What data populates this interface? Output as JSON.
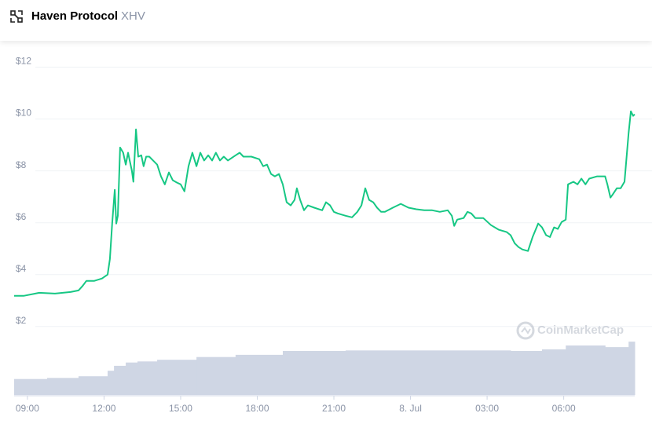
{
  "header": {
    "name": "Haven Protocol",
    "symbol": "XHV"
  },
  "chart_data": {
    "type": "line",
    "watermark": "CoinMarketCap",
    "x": [
      8.48,
      8.85,
      9.31,
      9.46,
      10.08,
      10.69,
      11.0,
      11.15,
      11.31,
      11.62,
      11.92,
      12.14,
      12.23,
      12.32,
      12.42,
      12.48,
      12.54,
      12.63,
      12.75,
      12.85,
      12.94,
      13.09,
      13.15,
      13.25,
      13.34,
      13.46,
      13.55,
      13.65,
      13.77,
      13.92,
      14.08,
      14.23,
      14.38,
      14.54,
      14.69,
      14.85,
      15.0,
      15.15,
      15.31,
      15.46,
      15.62,
      15.77,
      15.92,
      16.08,
      16.23,
      16.38,
      16.54,
      16.69,
      16.85,
      17.15,
      17.31,
      17.46,
      17.77,
      18.08,
      18.23,
      18.38,
      18.54,
      18.69,
      18.85,
      19.0,
      19.15,
      19.31,
      19.46,
      19.55,
      19.68,
      19.83,
      19.98,
      20.23,
      20.54,
      20.69,
      20.85,
      21.0,
      21.15,
      21.46,
      21.71,
      21.92,
      22.08,
      22.23,
      22.38,
      22.54,
      22.69,
      22.85,
      23.0,
      23.31,
      23.62,
      23.92,
      24.23,
      24.54,
      24.85,
      25.15,
      25.46,
      25.62,
      25.71,
      25.83,
      26.08,
      26.23,
      26.38,
      26.54,
      26.85,
      27.15,
      27.46,
      27.77,
      27.92,
      28.08,
      28.23,
      28.38,
      28.6,
      28.78,
      29.0,
      29.15,
      29.31,
      29.46,
      29.62,
      29.77,
      29.92,
      30.08,
      30.17,
      30.38,
      30.54,
      30.69,
      30.85,
      31.0,
      31.31,
      31.62,
      31.71,
      31.83,
      31.92,
      32.08,
      32.23,
      32.38,
      32.54,
      32.63,
      32.72,
      32.78
    ],
    "series": [
      {
        "color": "#16c784",
        "values": [
          3.18,
          3.18,
          3.27,
          3.3,
          3.27,
          3.33,
          3.39,
          3.55,
          3.76,
          3.76,
          3.85,
          4.0,
          4.6,
          5.97,
          7.27,
          5.97,
          6.27,
          8.9,
          8.7,
          8.24,
          8.7,
          8.0,
          7.58,
          9.6,
          8.55,
          8.6,
          8.18,
          8.55,
          8.55,
          8.4,
          8.24,
          7.79,
          7.48,
          7.94,
          7.64,
          7.55,
          7.48,
          7.21,
          8.18,
          8.7,
          8.18,
          8.7,
          8.4,
          8.6,
          8.4,
          8.7,
          8.4,
          8.55,
          8.4,
          8.6,
          8.7,
          8.55,
          8.55,
          8.45,
          8.18,
          8.24,
          7.88,
          7.79,
          7.88,
          7.48,
          6.79,
          6.67,
          6.88,
          7.33,
          6.88,
          6.48,
          6.67,
          6.58,
          6.48,
          6.79,
          6.67,
          6.42,
          6.36,
          6.27,
          6.21,
          6.42,
          6.67,
          7.33,
          6.88,
          6.79,
          6.58,
          6.42,
          6.42,
          6.58,
          6.73,
          6.58,
          6.52,
          6.48,
          6.48,
          6.42,
          6.48,
          6.27,
          5.88,
          6.12,
          6.18,
          6.42,
          6.36,
          6.18,
          6.18,
          5.91,
          5.73,
          5.64,
          5.52,
          5.21,
          5.06,
          4.97,
          4.91,
          5.45,
          5.97,
          5.82,
          5.52,
          5.45,
          5.82,
          5.76,
          6.03,
          6.12,
          7.48,
          7.58,
          7.48,
          7.7,
          7.48,
          7.7,
          7.79,
          7.79,
          7.48,
          6.97,
          7.09,
          7.33,
          7.33,
          7.58,
          9.45,
          10.3,
          10.12,
          10.18
        ]
      }
    ],
    "volume": {
      "color": "#cfd6e4",
      "ylim": [
        0,
        100
      ],
      "x": [
        8.48,
        9.77,
        11.0,
        12.14,
        12.39,
        12.85,
        13.31,
        14.08,
        15.62,
        17.15,
        19.0,
        21.46,
        27.92,
        29.15,
        30.08,
        31.62,
        32.54
      ],
      "values": [
        29,
        31,
        34,
        44,
        53,
        59,
        61,
        64,
        69,
        73,
        80,
        81,
        80,
        83,
        90,
        87,
        97
      ]
    },
    "xlim": [
      8.48,
      32.78
    ],
    "xticks": [
      {
        "value": 9,
        "label": "09:00"
      },
      {
        "value": 12,
        "label": "12:00"
      },
      {
        "value": 15,
        "label": "15:00"
      },
      {
        "value": 18,
        "label": "18:00"
      },
      {
        "value": 21,
        "label": "21:00"
      },
      {
        "value": 24,
        "label": "8. Jul"
      },
      {
        "value": 27,
        "label": "03:00"
      },
      {
        "value": 30,
        "label": "06:00"
      }
    ],
    "ylim": [
      -0.64,
      12.5
    ],
    "yticks": [
      {
        "value": 2,
        "label": "$2"
      },
      {
        "value": 4,
        "label": "$4"
      },
      {
        "value": 6,
        "label": "$6"
      },
      {
        "value": 8,
        "label": "$8"
      },
      {
        "value": 10,
        "label": "$10"
      },
      {
        "value": 12,
        "label": "$12"
      }
    ],
    "grid": true
  }
}
